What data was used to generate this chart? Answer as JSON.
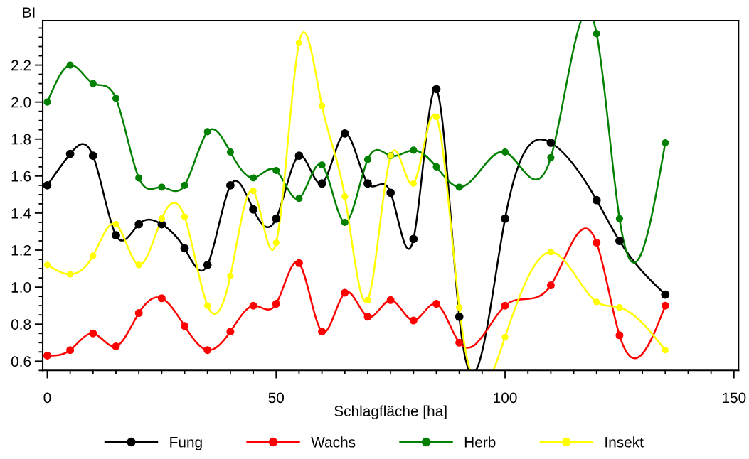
{
  "chart_data": {
    "type": "line",
    "xlabel": "Schlagfläche [ha]",
    "ylabel": "BI",
    "x": [
      0,
      5,
      10,
      15,
      20,
      25,
      30,
      35,
      40,
      45,
      50,
      55,
      60,
      65,
      70,
      75,
      80,
      85,
      90,
      100,
      110,
      120,
      125,
      135
    ],
    "series": [
      {
        "name": "Fung",
        "color": "#000000",
        "values": [
          1.55,
          1.72,
          1.71,
          1.28,
          1.34,
          1.34,
          1.21,
          1.12,
          1.55,
          1.42,
          1.37,
          1.71,
          1.56,
          1.83,
          1.56,
          1.51,
          1.26,
          2.07,
          0.84,
          1.37,
          1.78,
          1.47,
          1.25,
          0.96
        ]
      },
      {
        "name": "Wachs",
        "color": "#ff0000",
        "values": [
          0.63,
          0.66,
          0.75,
          0.68,
          0.86,
          0.94,
          0.79,
          0.66,
          0.76,
          0.9,
          0.91,
          1.13,
          0.76,
          0.97,
          0.84,
          0.93,
          0.82,
          0.91,
          0.7,
          0.9,
          1.01,
          1.24,
          0.74,
          0.9
        ]
      },
      {
        "name": "Herb",
        "color": "#008000",
        "values": [
          2.0,
          2.2,
          2.1,
          2.02,
          1.59,
          1.54,
          1.55,
          1.84,
          1.73,
          1.59,
          1.63,
          1.48,
          1.66,
          1.35,
          1.69,
          1.71,
          1.74,
          1.65,
          1.54,
          1.73,
          1.7,
          2.37,
          1.37,
          1.78
        ]
      },
      {
        "name": "Insekt",
        "color": "#ffff00",
        "values": [
          1.12,
          1.07,
          1.17,
          1.34,
          1.12,
          1.37,
          1.38,
          0.9,
          1.06,
          1.52,
          1.24,
          2.32,
          1.98,
          1.49,
          0.93,
          1.71,
          1.56,
          1.92,
          0.89,
          0.73,
          1.19,
          0.92,
          0.89,
          0.66
        ]
      }
    ],
    "xlim": [
      -1,
      151
    ],
    "xticks": [
      0,
      50,
      100,
      150
    ],
    "ylim": [
      0.55,
      2.44
    ],
    "yticks": [
      0.6,
      0.8,
      {
        "value": 1,
        "label": "1.0"
      },
      1.2,
      1.4,
      1.6,
      1.8,
      {
        "value": 2,
        "label": "2.0"
      },
      2.2
    ],
    "marker": "circle",
    "line_style": "solid",
    "grid": false,
    "legend": "bottom"
  }
}
